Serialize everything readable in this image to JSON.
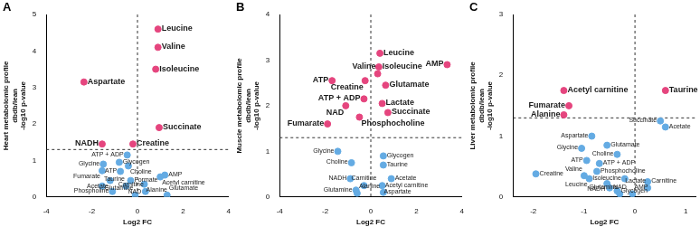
{
  "chart_data": [
    {
      "type": "scatter",
      "title": "A",
      "y_label": [
        "Heart metabolomic profile",
        "dbdb/lean",
        "-log10 p-value"
      ],
      "x_label": "Log2 FC",
      "xlim": [
        -4,
        4
      ],
      "xticks": [
        -4,
        -2,
        0,
        2,
        4
      ],
      "ylim": [
        0,
        5
      ],
      "yticks": [
        0,
        1,
        2,
        3,
        4,
        5
      ],
      "grid": false,
      "hline": 1.3,
      "vline": 0,
      "labels": [
        "Leucine",
        "Valine",
        "Isoleucine",
        "Aspartate",
        "Succinate",
        "Creatine",
        "NADH",
        "ATP + ADP",
        "Glycogen",
        "Choline",
        "Glycine",
        "Fumarate",
        "ATP",
        "AMP",
        "Acetyl carnitine",
        "Formate",
        "Acetate",
        "Taurine",
        "NAD",
        "Alanine",
        "Phospholine",
        "Carnitine",
        "Glutamine",
        "Glutamate"
      ],
      "x": [
        0.9,
        0.9,
        0.8,
        -2.35,
        0.95,
        -0.2,
        -1.55,
        -0.45,
        -0.8,
        -0.4,
        -1.5,
        -1.55,
        -0.75,
        1.2,
        1.0,
        -0.3,
        -1.2,
        -1.55,
        -0.5,
        0.3,
        -1.1,
        0.35,
        -0.1,
        1.3
      ],
      "values": [
        4.6,
        4.1,
        3.5,
        3.15,
        1.9,
        1.45,
        1.45,
        1.15,
        0.95,
        0.85,
        0.9,
        0.72,
        0.7,
        0.6,
        0.55,
        0.45,
        0.45,
        0.3,
        0.3,
        0.35,
        0.15,
        0.15,
        0.05,
        0.05
      ],
      "colors": [
        "#e5457e",
        "#e5457e",
        "#e5457e",
        "#e5457e",
        "#e5457e",
        "#e5457e",
        "#e5457e",
        "#64abe3",
        "#64abe3",
        "#64abe3",
        "#64abe3",
        "#64abe3",
        "#64abe3",
        "#64abe3",
        "#64abe3",
        "#64abe3",
        "#64abe3",
        "#64abe3",
        "#64abe3",
        "#64abe3",
        "#64abe3",
        "#64abe3",
        "#64abe3",
        "#64abe3"
      ]
    },
    {
      "type": "scatter",
      "title": "B",
      "y_label": [
        "Muscle metabolomic profile",
        "dbdb/lean",
        "-log10 p-value"
      ],
      "x_label": "Log2 FC",
      "xlim": [
        -4,
        4
      ],
      "xticks": [
        -4,
        -2,
        0,
        2,
        4
      ],
      "ylim": [
        0,
        4
      ],
      "yticks": [
        0,
        1,
        2,
        3,
        4
      ],
      "grid": false,
      "hline": 1.3,
      "vline": 0,
      "labels": [
        "Leucine",
        "Isoleucine",
        "Valine",
        "AMP",
        "ATP",
        "Creatine",
        "Glutamate",
        "ATP + ADP",
        "NAD",
        "Lactate",
        "Succinate",
        "Phosphocholine",
        "Fumarate",
        "Glycine",
        "Choline",
        "Glycogen",
        "Taurine",
        "Acetate",
        "NADH",
        "Carnitine",
        "Aspartate",
        "Glutamine",
        "Alanine",
        "Acetyl carnitine"
      ],
      "x": [
        0.4,
        0.35,
        0.3,
        3.35,
        -1.7,
        -0.25,
        0.65,
        -0.3,
        -1.1,
        0.5,
        0.75,
        -0.5,
        -1.9,
        -1.45,
        -0.85,
        0.55,
        0.55,
        0.9,
        -0.9,
        -0.3,
        0.5,
        -0.65,
        -0.6,
        0.55
      ],
      "values": [
        3.15,
        2.85,
        2.7,
        2.9,
        2.55,
        2.55,
        2.45,
        2.15,
        2.0,
        2.05,
        1.85,
        1.75,
        1.6,
        1.0,
        0.75,
        0.9,
        0.7,
        0.4,
        0.4,
        0.25,
        0.25,
        0.15,
        0.08,
        0.1
      ],
      "colors": [
        "#e5457e",
        "#e5457e",
        "#e5457e",
        "#e5457e",
        "#e5457e",
        "#e5457e",
        "#e5457e",
        "#e5457e",
        "#e5457e",
        "#e5457e",
        "#e5457e",
        "#e5457e",
        "#e5457e",
        "#64abe3",
        "#64abe3",
        "#64abe3",
        "#64abe3",
        "#64abe3",
        "#64abe3",
        "#64abe3",
        "#64abe3",
        "#64abe3",
        "#64abe3",
        "#64abe3"
      ]
    },
    {
      "type": "scatter",
      "title": "C",
      "y_label": [
        "Liver metabolomic profile",
        "dbdb/lean",
        "-log10 p-value"
      ],
      "x_label": "Log2 FC",
      "xlim": [
        -2.4,
        1.2
      ],
      "xticks": [
        -2,
        -1,
        0,
        1
      ],
      "ylim": [
        0,
        3
      ],
      "yticks": [
        0,
        1,
        2,
        3
      ],
      "grid": false,
      "hline": 1.3,
      "vline": 0,
      "labels": [
        "Acetyl carnitine",
        "Fumarate",
        "Alanine",
        "Taurine",
        "Succinate",
        "Acetate",
        "Aspartate",
        "Glycine",
        "Glutamate",
        "Choline",
        "ATP",
        "ATP + ADP",
        "Phosphocholine",
        "Creatine",
        "Valine",
        "Isoleucine",
        "Leucine",
        "Carnitine",
        "NADH",
        "NAD",
        "Lactate",
        "Glycogen",
        "Glutamine",
        "AMP"
      ],
      "x": [
        -1.4,
        -1.3,
        -1.4,
        0.6,
        0.5,
        0.6,
        -0.85,
        -1.05,
        -0.55,
        -0.35,
        -0.95,
        -0.7,
        -0.75,
        -1.95,
        -1.0,
        -0.2,
        -0.9,
        0.25,
        -0.55,
        -0.5,
        0.25,
        -0.35,
        -0.3,
        -0.05
      ],
      "values": [
        1.75,
        1.5,
        1.35,
        1.75,
        1.25,
        1.15,
        1.0,
        0.8,
        0.85,
        0.7,
        0.6,
        0.55,
        0.42,
        0.38,
        0.35,
        0.3,
        0.3,
        0.25,
        0.22,
        0.15,
        0.15,
        0.1,
        0.05,
        0.05
      ],
      "colors": [
        "#e5457e",
        "#e5457e",
        "#e5457e",
        "#e5457e",
        "#64abe3",
        "#64abe3",
        "#64abe3",
        "#64abe3",
        "#64abe3",
        "#64abe3",
        "#64abe3",
        "#64abe3",
        "#64abe3",
        "#64abe3",
        "#64abe3",
        "#64abe3",
        "#64abe3",
        "#64abe3",
        "#64abe3",
        "#64abe3",
        "#64abe3",
        "#64abe3",
        "#64abe3",
        "#64abe3"
      ]
    }
  ]
}
